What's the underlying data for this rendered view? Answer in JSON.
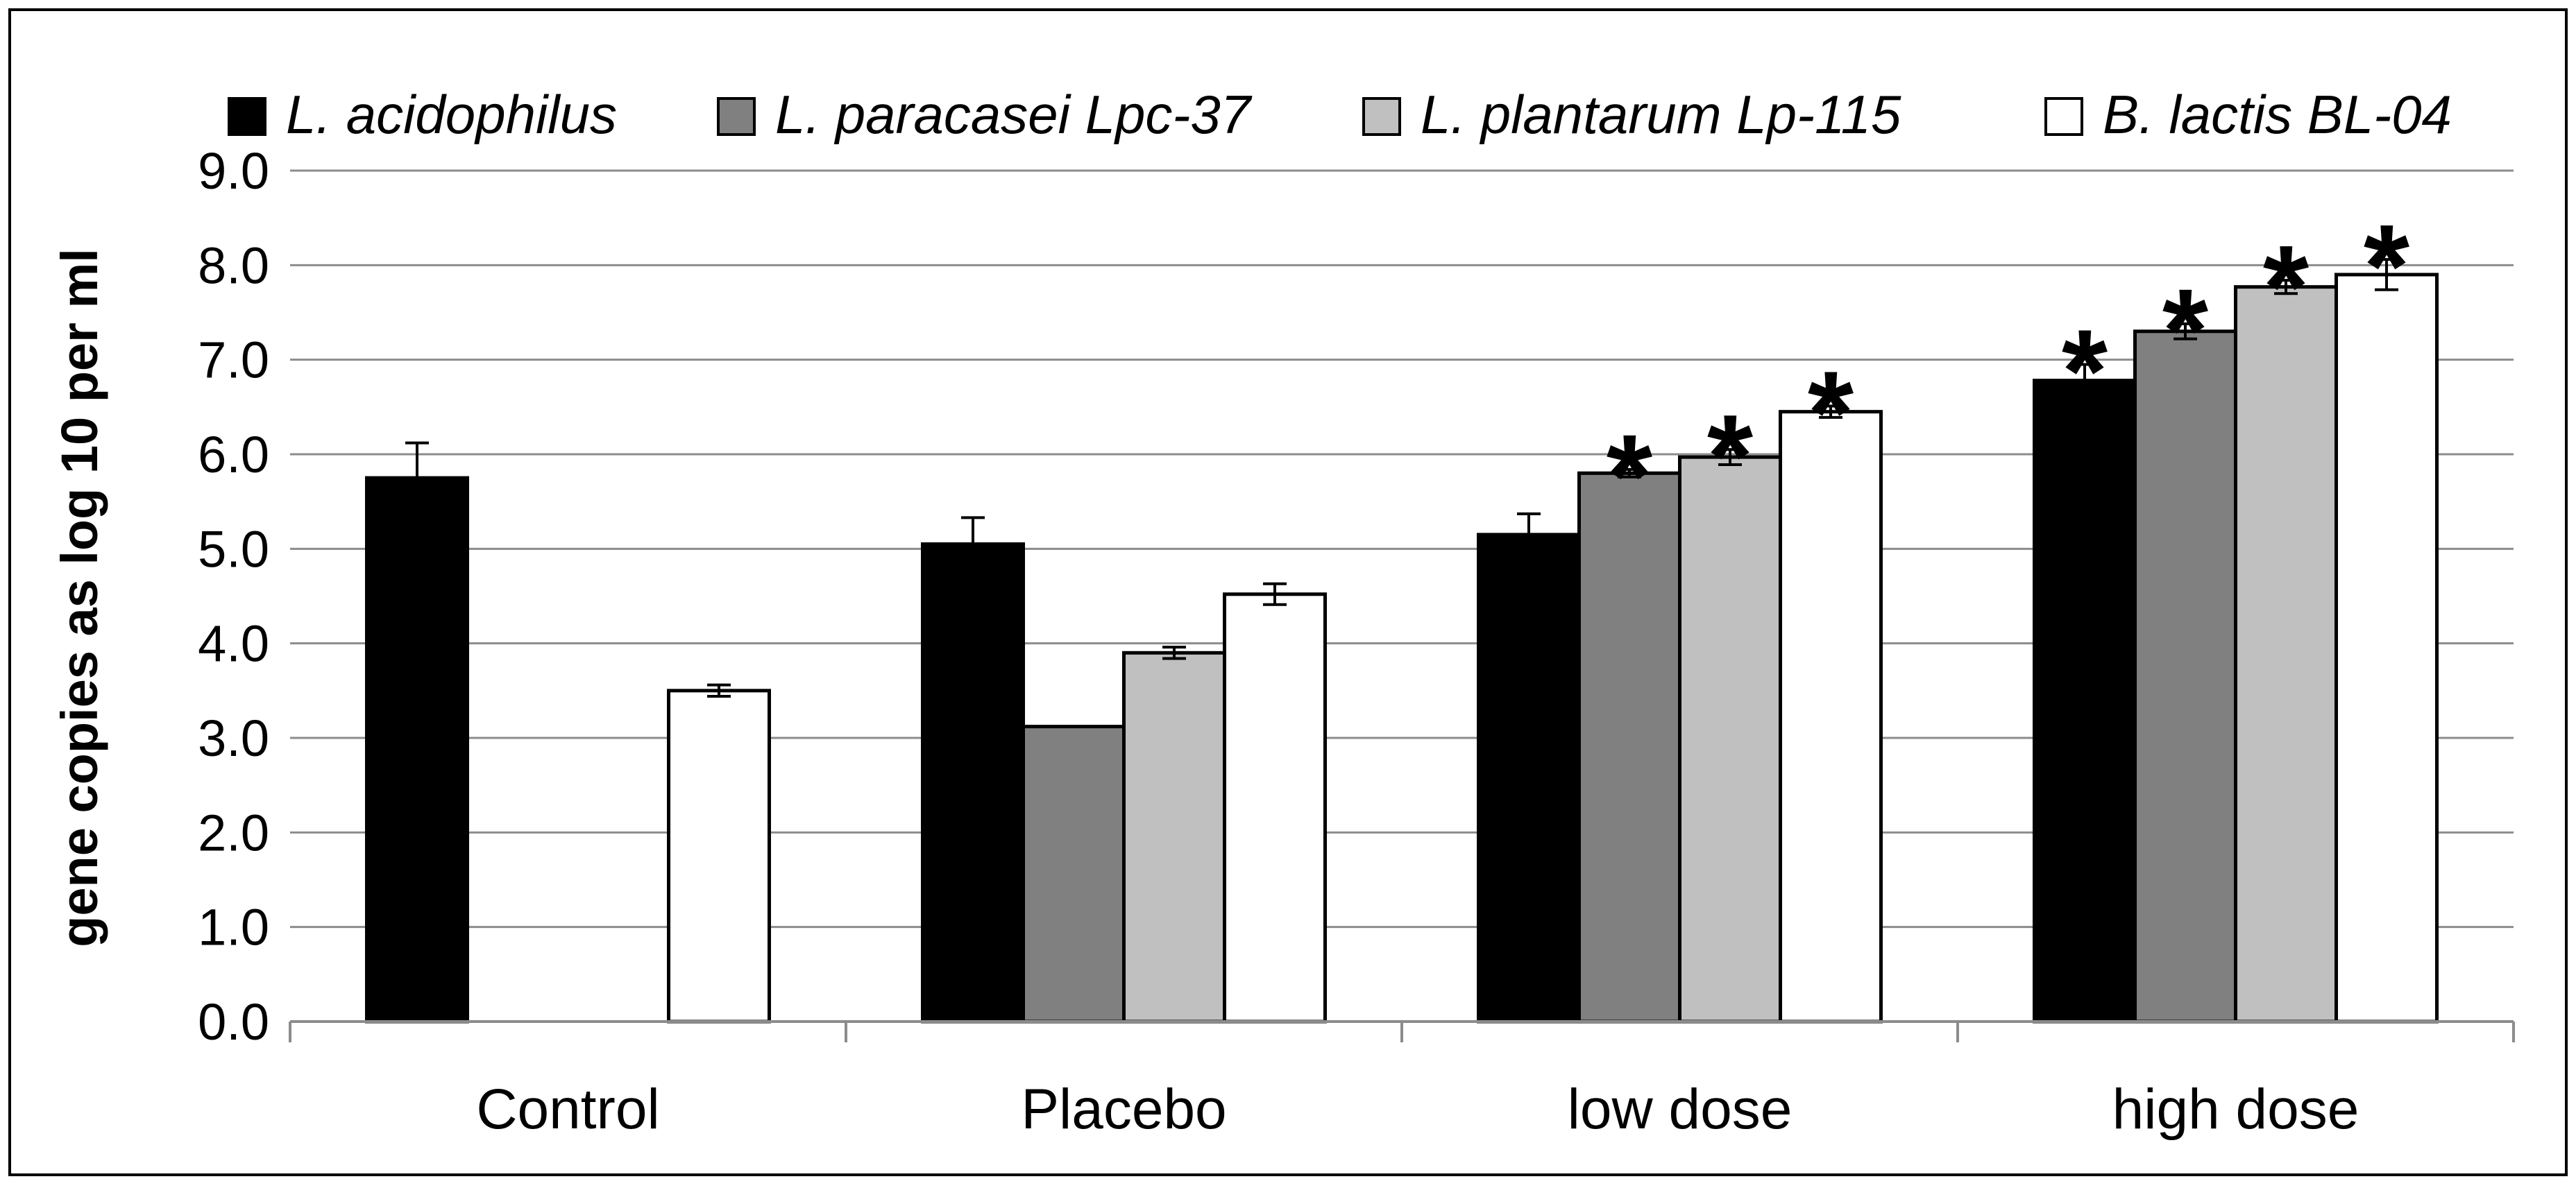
{
  "chart_data": {
    "type": "bar",
    "title": "",
    "xlabel": "",
    "ylabel": "gene copies as log 10 per ml",
    "ylim": [
      0,
      9
    ],
    "yticks": [
      "0.0",
      "1.0",
      "2.0",
      "3.0",
      "4.0",
      "5.0",
      "6.0",
      "7.0",
      "8.0",
      "9.0"
    ],
    "grid": true,
    "legend_position": "top",
    "categories": [
      "Control",
      "Placebo",
      "low dose",
      "high dose"
    ],
    "series": [
      {
        "name": "L. acidophilus",
        "color": "#000000",
        "values": [
          5.75,
          5.05,
          5.15,
          6.78
        ],
        "errors": [
          0.37,
          0.28,
          0.22,
          0.17
        ],
        "significant": [
          false,
          false,
          false,
          true
        ]
      },
      {
        "name": "L. paracasei Lpc-37",
        "color": "#808080",
        "values": [
          null,
          3.12,
          5.8,
          7.3
        ],
        "errors": [
          null,
          0,
          0.04,
          0.08
        ],
        "significant": [
          false,
          false,
          true,
          true
        ]
      },
      {
        "name": "L. plantarum Lp-115",
        "color": "#c0c0c0",
        "values": [
          null,
          3.9,
          5.97,
          7.77
        ],
        "errors": [
          null,
          0.06,
          0.08,
          0.07
        ],
        "significant": [
          false,
          false,
          true,
          true
        ]
      },
      {
        "name": "B. lactis BL-04",
        "color": "#ffffff",
        "values": [
          3.5,
          4.52,
          6.45,
          7.9
        ],
        "errors": [
          0.06,
          0.11,
          0.06,
          0.16
        ],
        "significant": [
          false,
          false,
          true,
          true
        ]
      }
    ],
    "significance_marker": "*"
  }
}
